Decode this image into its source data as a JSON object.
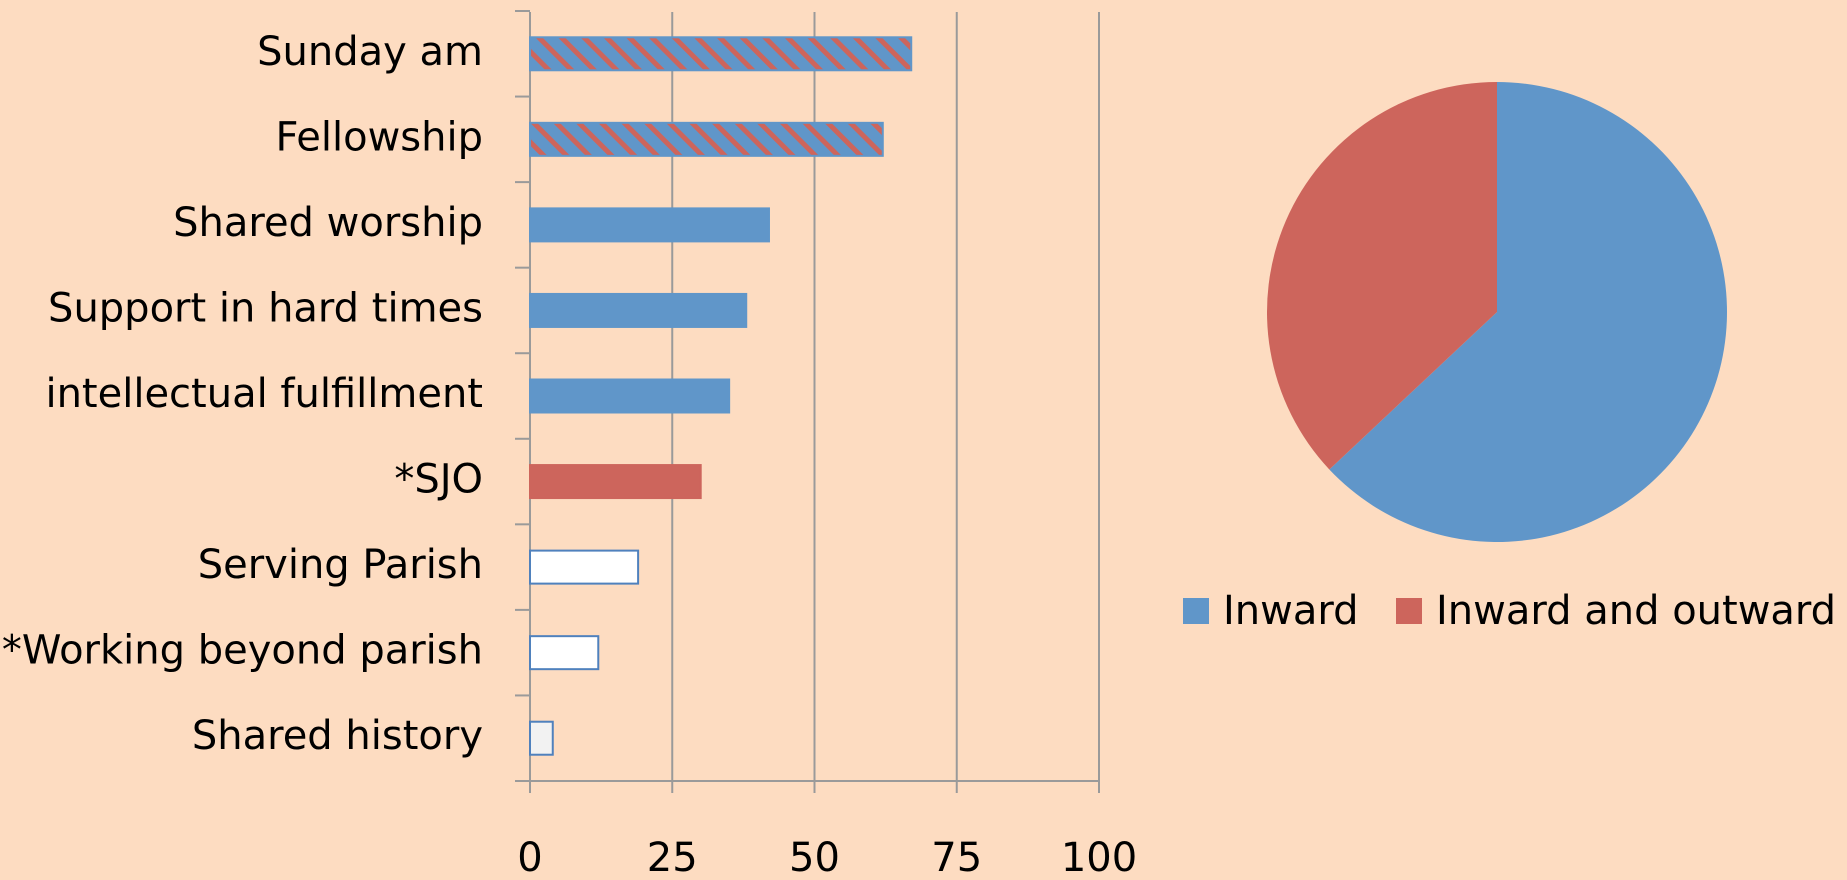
{
  "chart_data": [
    {
      "type": "hbar",
      "categories": [
        "Sunday am",
        "Fellowship",
        "Shared worship",
        "Support in hard times",
        "intellectual fulfillment",
        "*SJO",
        "Serving Parish",
        "*Working beyond parish",
        "Shared history"
      ],
      "values": [
        67,
        62,
        42,
        38,
        35,
        30,
        19,
        12,
        4
      ],
      "bar_styles": [
        {
          "fill": "#6096c9",
          "stroke": "#6096c9",
          "hatch": "#cd655c"
        },
        {
          "fill": "#6096c9",
          "stroke": "#6096c9",
          "hatch": "#cd655c"
        },
        {
          "fill": "#6096c9",
          "stroke": "#6096c9"
        },
        {
          "fill": "#6096c9",
          "stroke": "#6096c9"
        },
        {
          "fill": "#6096c9",
          "stroke": "#6096c9"
        },
        {
          "fill": "#cd655c",
          "stroke": "#cd655c"
        },
        {
          "fill": "#ffffff",
          "stroke": "#4f81bd"
        },
        {
          "fill": "#ffffff",
          "stroke": "#4f81bd"
        },
        {
          "fill": "#f2f2f2",
          "stroke": "#4f81bd"
        }
      ],
      "xlim": [
        0,
        100
      ],
      "xticks": [
        0,
        25,
        50,
        75,
        100
      ],
      "grid": true
    },
    {
      "type": "pie",
      "categories": [
        "Inward",
        "Inward and outward"
      ],
      "values": [
        63,
        37
      ],
      "colors": [
        "#6096c9",
        "#cd655c"
      ],
      "legend": "bottom"
    }
  ]
}
